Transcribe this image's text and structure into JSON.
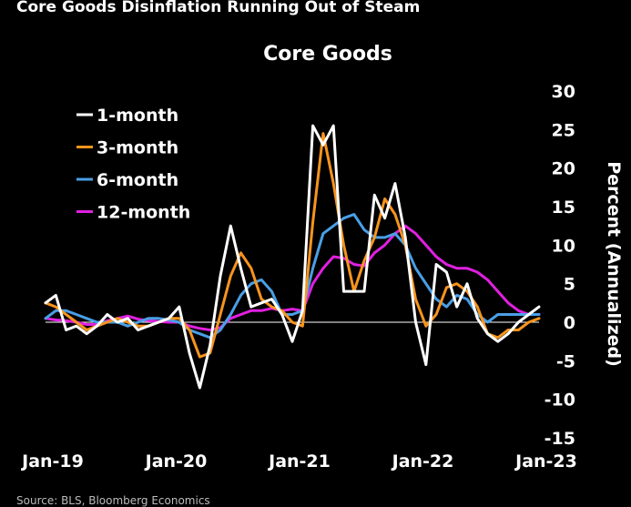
{
  "header": {
    "title": "Core Goods Disinflation Running Out of Steam",
    "source": "Source: BLS, Bloomberg Economics"
  },
  "chart_data": {
    "type": "line",
    "title": "Core Goods",
    "ylabel": "Percent (Annualized)",
    "xlabel": "",
    "ylim": [
      -15,
      30
    ],
    "yticks": [
      30,
      25,
      20,
      15,
      10,
      5,
      0,
      -5,
      -10,
      -15
    ],
    "xticks": [
      "Jan-19",
      "Jan-20",
      "Jan-21",
      "Jan-22",
      "Jan-23"
    ],
    "legend_position": "top-left",
    "x": [
      "2019-01",
      "2019-02",
      "2019-03",
      "2019-04",
      "2019-05",
      "2019-06",
      "2019-07",
      "2019-08",
      "2019-09",
      "2019-10",
      "2019-11",
      "2019-12",
      "2020-01",
      "2020-02",
      "2020-03",
      "2020-04",
      "2020-05",
      "2020-06",
      "2020-07",
      "2020-08",
      "2020-09",
      "2020-10",
      "2020-11",
      "2020-12",
      "2021-01",
      "2021-02",
      "2021-03",
      "2021-04",
      "2021-05",
      "2021-06",
      "2021-07",
      "2021-08",
      "2021-09",
      "2021-10",
      "2021-11",
      "2021-12",
      "2022-01",
      "2022-02",
      "2022-03",
      "2022-04",
      "2022-05",
      "2022-06",
      "2022-07",
      "2022-08",
      "2022-09",
      "2022-10",
      "2022-11",
      "2022-12",
      "2023-01"
    ],
    "series": [
      {
        "name": "1-month",
        "color": "#ffffff",
        "values": [
          2.5,
          3.5,
          -1,
          -0.5,
          -1.5,
          -0.5,
          1,
          0,
          0.5,
          -1,
          -0.5,
          0,
          0.5,
          2,
          -4,
          -8.5,
          -3,
          6,
          12.5,
          7,
          2,
          2.5,
          3,
          1,
          -2.5,
          1.5,
          25.5,
          23,
          25.5,
          4,
          4,
          4,
          16.5,
          13.5,
          18,
          11,
          0,
          -5.5,
          7.5,
          6.5,
          2,
          5,
          0.5,
          -1.5,
          -2.5,
          -1.5,
          0,
          1,
          2
        ]
      },
      {
        "name": "3-month",
        "color": "#f7941d",
        "values": [
          2.5,
          2,
          1,
          0,
          -1,
          -0.5,
          0,
          0.5,
          0,
          -0.5,
          -0.5,
          0,
          0.5,
          0.5,
          -1,
          -4.5,
          -4,
          1,
          6,
          9,
          7,
          3,
          2,
          1.5,
          0,
          -0.5,
          13,
          24.5,
          18,
          10,
          4,
          8,
          11,
          16,
          14,
          10,
          3,
          -0.5,
          1,
          4.5,
          5,
          4,
          2,
          -1.5,
          -2,
          -1,
          -1,
          0,
          0.5
        ]
      },
      {
        "name": "6-month",
        "color": "#4a9fe6",
        "values": [
          0.5,
          1.5,
          1.5,
          1,
          0.5,
          0,
          0,
          0,
          -0.5,
          0,
          0.5,
          0.5,
          0.3,
          0,
          -1,
          -1.5,
          -2,
          -1,
          1,
          3.5,
          5,
          5.5,
          4,
          1,
          1,
          1.5,
          7,
          11.5,
          12.5,
          13.5,
          14,
          12,
          11,
          11,
          11.5,
          10,
          7,
          5,
          3,
          2,
          3.5,
          3,
          1,
          0,
          1,
          1,
          1,
          1,
          1
        ]
      },
      {
        "name": "12-month",
        "color": "#e020e0",
        "values": [
          0.5,
          0.3,
          0.2,
          0,
          -0.3,
          -0.3,
          0.2,
          0.5,
          0.8,
          0.4,
          0.2,
          0.1,
          0,
          0,
          -0.5,
          -0.8,
          -1,
          -0.7,
          0.5,
          1,
          1.5,
          1.5,
          1.8,
          1.5,
          1.7,
          1.5,
          5,
          7,
          8.5,
          8.3,
          7.5,
          7.3,
          9,
          10,
          11.5,
          12.5,
          11.5,
          10,
          8.5,
          7.5,
          7,
          7,
          6.5,
          5.5,
          4,
          2.5,
          1.5,
          1,
          1
        ]
      }
    ]
  }
}
